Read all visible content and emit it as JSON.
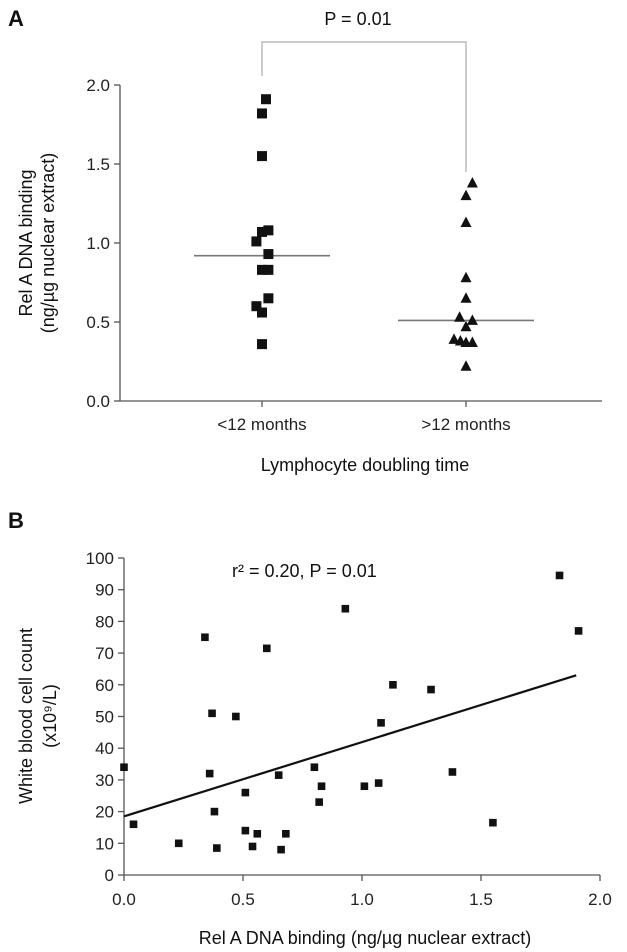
{
  "chart_data": [
    {
      "panel": "A",
      "type": "scatter",
      "ylabel_lines": [
        "Rel A DNA binding",
        "(ng/µg nuclear extract)"
      ],
      "xlabel": "Lymphocyte doubling time",
      "categories": [
        "<12 months",
        ">12 months"
      ],
      "ylim": [
        0,
        2.0
      ],
      "yticks": [
        "0.0",
        "0.5",
        "1.0",
        "1.5",
        "2.0"
      ],
      "annotation": "P = 0.01",
      "series": [
        {
          "category": "<12 months",
          "marker": "square",
          "median": 0.92,
          "points": [
            {
              "offset": 0.5,
              "y": 1.91
            },
            {
              "offset": 0,
              "y": 1.82
            },
            {
              "offset": 0,
              "y": 1.55
            },
            {
              "offset": 0,
              "y": 1.07
            },
            {
              "offset": 0.8,
              "y": 1.08
            },
            {
              "offset": -0.7,
              "y": 1.01
            },
            {
              "offset": 0.8,
              "y": 0.93
            },
            {
              "offset": 0,
              "y": 0.83
            },
            {
              "offset": 0.8,
              "y": 0.83
            },
            {
              "offset": 0.8,
              "y": 0.65
            },
            {
              "offset": -0.7,
              "y": 0.6
            },
            {
              "offset": 0,
              "y": 0.56
            },
            {
              "offset": 0,
              "y": 0.36
            }
          ]
        },
        {
          "category": ">12 months",
          "marker": "triangle",
          "median": 0.51,
          "points": [
            {
              "offset": 0.8,
              "y": 1.38
            },
            {
              "offset": 0,
              "y": 1.3
            },
            {
              "offset": 0,
              "y": 1.13
            },
            {
              "offset": 0,
              "y": 0.78
            },
            {
              "offset": 0,
              "y": 0.65
            },
            {
              "offset": -0.8,
              "y": 0.53
            },
            {
              "offset": 0.8,
              "y": 0.51
            },
            {
              "offset": 0,
              "y": 0.47
            },
            {
              "offset": -1.5,
              "y": 0.39
            },
            {
              "offset": -0.7,
              "y": 0.38
            },
            {
              "offset": 0,
              "y": 0.37
            },
            {
              "offset": 0.8,
              "y": 0.37
            },
            {
              "offset": 0,
              "y": 0.22
            }
          ]
        }
      ]
    },
    {
      "panel": "B",
      "type": "scatter",
      "ylabel_lines": [
        "White blood cell count",
        "(x10⁹/L)"
      ],
      "xlabel": "Rel A DNA binding (ng/µg nuclear extract)",
      "xlim": [
        0,
        2.0
      ],
      "ylim": [
        0,
        100
      ],
      "xticks": [
        "0.0",
        "0.5",
        "1.0",
        "1.5",
        "2.0"
      ],
      "yticks": [
        "0",
        "10",
        "20",
        "30",
        "40",
        "50",
        "60",
        "70",
        "80",
        "90",
        "100"
      ],
      "annotation": "r² = 0.20, P = 0.01",
      "regression": {
        "x0": 0,
        "y0": 18.5,
        "x1": 1.9,
        "y1": 63
      },
      "points": [
        {
          "x": 0.0,
          "y": 34
        },
        {
          "x": 0.04,
          "y": 16
        },
        {
          "x": 0.23,
          "y": 10
        },
        {
          "x": 0.34,
          "y": 75
        },
        {
          "x": 0.36,
          "y": 32
        },
        {
          "x": 0.37,
          "y": 51
        },
        {
          "x": 0.38,
          "y": 20
        },
        {
          "x": 0.39,
          "y": 8.5
        },
        {
          "x": 0.47,
          "y": 50
        },
        {
          "x": 0.51,
          "y": 26
        },
        {
          "x": 0.51,
          "y": 14
        },
        {
          "x": 0.54,
          "y": 9
        },
        {
          "x": 0.56,
          "y": 13
        },
        {
          "x": 0.6,
          "y": 71.5
        },
        {
          "x": 0.65,
          "y": 31.5
        },
        {
          "x": 0.66,
          "y": 8
        },
        {
          "x": 0.68,
          "y": 13
        },
        {
          "x": 0.8,
          "y": 34
        },
        {
          "x": 0.82,
          "y": 23
        },
        {
          "x": 0.83,
          "y": 28
        },
        {
          "x": 0.93,
          "y": 84
        },
        {
          "x": 1.01,
          "y": 28
        },
        {
          "x": 1.07,
          "y": 29
        },
        {
          "x": 1.08,
          "y": 48
        },
        {
          "x": 1.13,
          "y": 60
        },
        {
          "x": 1.29,
          "y": 58.5
        },
        {
          "x": 1.38,
          "y": 32.5
        },
        {
          "x": 1.55,
          "y": 16.5
        },
        {
          "x": 1.83,
          "y": 94.5
        },
        {
          "x": 1.91,
          "y": 77
        }
      ]
    }
  ]
}
